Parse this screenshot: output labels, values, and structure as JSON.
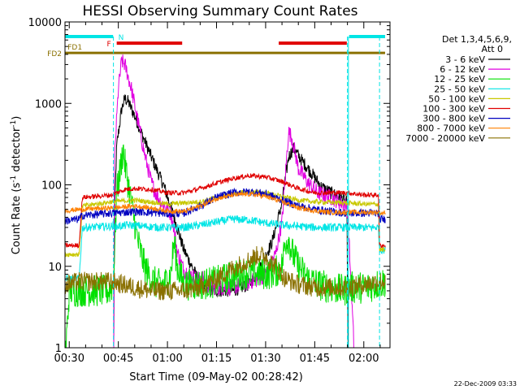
{
  "chart_data": {
    "type": "line",
    "title": "HESSI Observing Summary Count Rates",
    "xlabel": "Start Time (09-May-02 00:28:42)",
    "ylabel_main": "Count Rate (s",
    "ylabel_sup1": "-1",
    "ylabel_mid": " detector",
    "ylabel_sup2": "-1",
    "ylabel_end": ")",
    "y_scale": "log",
    "xlim_minutes": [
      28.7,
      128.0
    ],
    "ylim": [
      1,
      10000
    ],
    "x_ticks": [
      {
        "m": 30,
        "label": "00:30"
      },
      {
        "m": 45,
        "label": "00:45"
      },
      {
        "m": 60,
        "label": "01:00"
      },
      {
        "m": 75,
        "label": "01:15"
      },
      {
        "m": 90,
        "label": "01:30"
      },
      {
        "m": 105,
        "label": "01:45"
      },
      {
        "m": 120,
        "label": "02:00"
      }
    ],
    "y_ticks": [
      {
        "v": 1,
        "label": "1"
      },
      {
        "v": 10,
        "label": "10"
      },
      {
        "v": 100,
        "label": "100"
      },
      {
        "v": 1000,
        "label": "1000"
      },
      {
        "v": 10000,
        "label": "10000"
      }
    ],
    "legend_header": [
      "Det 1,3,4,5,6,9,",
      "Att 0"
    ],
    "legend_placement": "right",
    "date_stamp": "22-Dec-2009 03:33",
    "flags": [
      {
        "label": "N",
        "color": "#00e5e5",
        "y_level": 0.955,
        "segments": [
          [
            28.7,
            43.4
          ],
          [
            115.5,
            126.5
          ]
        ],
        "label_at": 45.0
      },
      {
        "label": "F",
        "color": "#e00000",
        "y_level": 0.935,
        "segments": [
          [
            44.5,
            64.5
          ],
          [
            94.0,
            114.8
          ]
        ],
        "label_at": 41.5
      },
      {
        "label": "FD1",
        "color": "#8a7000",
        "y_level": 0.925,
        "segments": [],
        "label_at": 29.5
      },
      {
        "label": "FD2",
        "color": "#8a7000",
        "y_level": 0.905,
        "segments": [
          [
            28.7,
            126.5
          ]
        ],
        "label_at": null
      }
    ],
    "vlines": [
      {
        "m": 43.5,
        "color": "#00e5e5",
        "dash": true
      },
      {
        "m": 115.0,
        "color": "#00e5e5",
        "dash": true
      },
      {
        "m": 115.3,
        "color": "#00e5e5",
        "dash": false
      },
      {
        "m": 124.8,
        "color": "#00e5e5",
        "dash": true
      }
    ],
    "series": [
      {
        "name": "3 - 6 keV",
        "color": "#000000",
        "noise": 0.08,
        "points": [
          [
            43.6,
            1
          ],
          [
            43.8,
            40
          ],
          [
            44.5,
            300
          ],
          [
            46,
            850
          ],
          [
            47,
            1150
          ],
          [
            48,
            1050
          ],
          [
            50,
            700
          ],
          [
            53,
            350
          ],
          [
            56,
            180
          ],
          [
            59,
            95
          ],
          [
            62,
            40
          ],
          [
            65,
            16
          ],
          [
            68,
            9
          ],
          [
            70,
            6
          ],
          [
            73,
            5
          ],
          [
            80,
            5
          ],
          [
            85,
            6
          ],
          [
            88,
            9
          ],
          [
            92,
            20
          ],
          [
            95,
            60
          ],
          [
            97,
            220
          ],
          [
            98.5,
            280
          ],
          [
            101,
            200
          ],
          [
            104,
            140
          ],
          [
            107,
            95
          ],
          [
            110,
            80
          ],
          [
            113,
            70
          ],
          [
            114.8,
            60
          ],
          [
            115.2,
            1
          ]
        ]
      },
      {
        "name": "6 - 12 keV",
        "color": "#e000e0",
        "noise": 0.1,
        "points": [
          [
            43.6,
            1
          ],
          [
            43.8,
            200
          ],
          [
            45,
            1500
          ],
          [
            46,
            3300
          ],
          [
            47,
            3000
          ],
          [
            49,
            1500
          ],
          [
            51,
            600
          ],
          [
            53,
            240
          ],
          [
            55,
            110
          ],
          [
            57,
            70
          ],
          [
            59,
            55
          ],
          [
            61,
            45
          ],
          [
            62,
            30
          ],
          [
            63,
            15
          ],
          [
            65,
            9
          ],
          [
            67,
            8
          ],
          [
            69,
            7
          ],
          [
            71,
            7
          ],
          [
            73,
            5.5
          ],
          [
            80,
            5.5
          ],
          [
            88,
            7
          ],
          [
            90,
            8
          ],
          [
            93,
            14
          ],
          [
            95,
            35
          ],
          [
            97,
            450
          ],
          [
            98,
            380
          ],
          [
            100,
            160
          ],
          [
            103,
            105
          ],
          [
            106,
            80
          ],
          [
            110,
            70
          ],
          [
            114.8,
            55
          ],
          [
            115.3,
            30
          ],
          [
            117,
            1
          ]
        ]
      },
      {
        "name": "12 - 25 keV",
        "color": "#00e000",
        "noise": 0.2,
        "points": [
          [
            28.7,
            1
          ],
          [
            29,
            1
          ],
          [
            30,
            5
          ],
          [
            42,
            5
          ],
          [
            43.5,
            6
          ],
          [
            44.5,
            80
          ],
          [
            46,
            200
          ],
          [
            46.5,
            280
          ],
          [
            47,
            180
          ],
          [
            49,
            60
          ],
          [
            51,
            20
          ],
          [
            53,
            10
          ],
          [
            55,
            7
          ],
          [
            57,
            6
          ],
          [
            59,
            6
          ],
          [
            61,
            8
          ],
          [
            62,
            20
          ],
          [
            63,
            10
          ],
          [
            65,
            6
          ],
          [
            70,
            6
          ],
          [
            75,
            6.5
          ],
          [
            80,
            7.5
          ],
          [
            85,
            8.5
          ],
          [
            90,
            8
          ],
          [
            93,
            8.5
          ],
          [
            95,
            10
          ],
          [
            96,
            20
          ],
          [
            97,
            22
          ],
          [
            98,
            15
          ],
          [
            100,
            10
          ],
          [
            103,
            7
          ],
          [
            106,
            6
          ],
          [
            110,
            5.5
          ],
          [
            114,
            5
          ],
          [
            115.2,
            5.5
          ],
          [
            117,
            5.5
          ],
          [
            121,
            5.5
          ],
          [
            124,
            6
          ],
          [
            126.5,
            6.5
          ]
        ]
      },
      {
        "name": "25 - 50 keV",
        "color": "#00e5e5",
        "noise": 0.05,
        "points": [
          [
            28.7,
            7
          ],
          [
            33,
            7
          ],
          [
            34,
            30
          ],
          [
            43,
            31
          ],
          [
            45,
            31
          ],
          [
            48,
            32
          ],
          [
            53,
            31
          ],
          [
            58,
            30
          ],
          [
            65,
            30
          ],
          [
            70,
            32
          ],
          [
            75,
            35
          ],
          [
            80,
            38
          ],
          [
            85,
            37
          ],
          [
            90,
            34
          ],
          [
            95,
            32
          ],
          [
            100,
            31
          ],
          [
            105,
            30
          ],
          [
            110,
            30
          ],
          [
            115,
            30
          ],
          [
            120,
            30
          ],
          [
            124.5,
            30
          ],
          [
            124.8,
            16
          ],
          [
            126.5,
            16
          ]
        ]
      },
      {
        "name": "50 - 100 keV",
        "color": "#c8c800",
        "noise": 0.03,
        "points": [
          [
            28.7,
            14
          ],
          [
            33,
            14
          ],
          [
            34,
            55
          ],
          [
            43,
            62
          ],
          [
            50,
            65
          ],
          [
            60,
            58
          ],
          [
            70,
            62
          ],
          [
            75,
            70
          ],
          [
            80,
            78
          ],
          [
            85,
            82
          ],
          [
            90,
            80
          ],
          [
            95,
            72
          ],
          [
            100,
            65
          ],
          [
            105,
            62
          ],
          [
            115,
            60
          ],
          [
            120,
            58
          ],
          [
            124.5,
            58
          ],
          [
            124.8,
            16
          ],
          [
            126.5,
            16
          ]
        ]
      },
      {
        "name": "100 - 300 keV",
        "color": "#e00000",
        "noise": 0.03,
        "points": [
          [
            28.7,
            18
          ],
          [
            33,
            18
          ],
          [
            34,
            70
          ],
          [
            43,
            75
          ],
          [
            47,
            88
          ],
          [
            50,
            90
          ],
          [
            55,
            88
          ],
          [
            60,
            80
          ],
          [
            65,
            80
          ],
          [
            70,
            90
          ],
          [
            75,
            105
          ],
          [
            80,
            120
          ],
          [
            85,
            130
          ],
          [
            90,
            125
          ],
          [
            95,
            110
          ],
          [
            100,
            90
          ],
          [
            105,
            80
          ],
          [
            110,
            80
          ],
          [
            115,
            80
          ],
          [
            120,
            75
          ],
          [
            124.5,
            75
          ],
          [
            124.8,
            18
          ],
          [
            126.5,
            18
          ]
        ]
      },
      {
        "name": "300 - 800 keV",
        "color": "#0000c0",
        "noise": 0.05,
        "points": [
          [
            28.7,
            36
          ],
          [
            33,
            38
          ],
          [
            34,
            42
          ],
          [
            43,
            45
          ],
          [
            50,
            47
          ],
          [
            55,
            46
          ],
          [
            60,
            44
          ],
          [
            65,
            45
          ],
          [
            70,
            55
          ],
          [
            75,
            70
          ],
          [
            80,
            80
          ],
          [
            85,
            82
          ],
          [
            90,
            78
          ],
          [
            95,
            65
          ],
          [
            100,
            55
          ],
          [
            105,
            50
          ],
          [
            110,
            47
          ],
          [
            115,
            45
          ],
          [
            120,
            45
          ],
          [
            124.5,
            45
          ],
          [
            125,
            38
          ],
          [
            126.5,
            38
          ]
        ]
      },
      {
        "name": "800 - 7000 keV",
        "color": "#ff8000",
        "noise": 0.03,
        "points": [
          [
            28.7,
            48
          ],
          [
            33,
            50
          ],
          [
            43,
            52
          ],
          [
            50,
            55
          ],
          [
            55,
            52
          ],
          [
            60,
            48
          ],
          [
            65,
            47
          ],
          [
            70,
            55
          ],
          [
            75,
            68
          ],
          [
            80,
            75
          ],
          [
            85,
            77
          ],
          [
            90,
            72
          ],
          [
            95,
            62
          ],
          [
            100,
            52
          ],
          [
            105,
            48
          ],
          [
            110,
            46
          ],
          [
            115,
            46
          ],
          [
            120,
            46
          ],
          [
            124.5,
            46
          ],
          [
            125,
            45
          ],
          [
            126.5,
            45
          ]
        ]
      },
      {
        "name": "7000 - 20000 keV",
        "color": "#8a7000",
        "noise": 0.12,
        "points": [
          [
            28.7,
            6
          ],
          [
            33,
            6.5
          ],
          [
            43,
            6.5
          ],
          [
            46,
            6
          ],
          [
            50,
            5.5
          ],
          [
            55,
            5
          ],
          [
            60,
            5
          ],
          [
            65,
            5
          ],
          [
            70,
            5.5
          ],
          [
            75,
            7
          ],
          [
            80,
            9.5
          ],
          [
            85,
            12
          ],
          [
            88,
            14
          ],
          [
            90,
            13
          ],
          [
            93,
            10
          ],
          [
            96,
            7
          ],
          [
            100,
            6
          ],
          [
            105,
            5.5
          ],
          [
            110,
            5.5
          ],
          [
            115,
            5.5
          ],
          [
            120,
            6
          ],
          [
            124.5,
            6.5
          ],
          [
            126.5,
            6.5
          ]
        ]
      }
    ]
  }
}
